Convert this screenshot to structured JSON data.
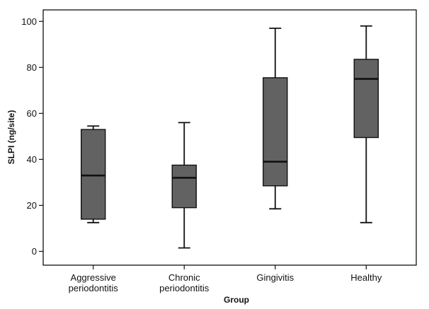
{
  "chart_data": {
    "type": "box",
    "xlabel": "Group",
    "ylabel": "SLPI (ng/site)",
    "ylim": [
      -6,
      105
    ],
    "yticks": [
      0,
      20,
      40,
      60,
      80,
      100
    ],
    "grid": false,
    "categories": [
      [
        "Aggressive",
        "periodontitis"
      ],
      [
        "Chronic",
        "periodontitis"
      ],
      [
        "Gingivitis"
      ],
      [
        "Healthy"
      ]
    ],
    "boxes": [
      {
        "min": 12.5,
        "q1": 14,
        "median": 33,
        "q3": 53,
        "max": 54.5
      },
      {
        "min": 1.5,
        "q1": 19,
        "median": 32,
        "q3": 37.5,
        "max": 56
      },
      {
        "min": 18.5,
        "q1": 28.5,
        "median": 39,
        "q3": 75.5,
        "max": 97
      },
      {
        "min": 12.5,
        "q1": 49.5,
        "median": 75,
        "q3": 83.5,
        "max": 98
      }
    ],
    "colors": {
      "box_fill": "#626262",
      "line": "#111111"
    }
  }
}
